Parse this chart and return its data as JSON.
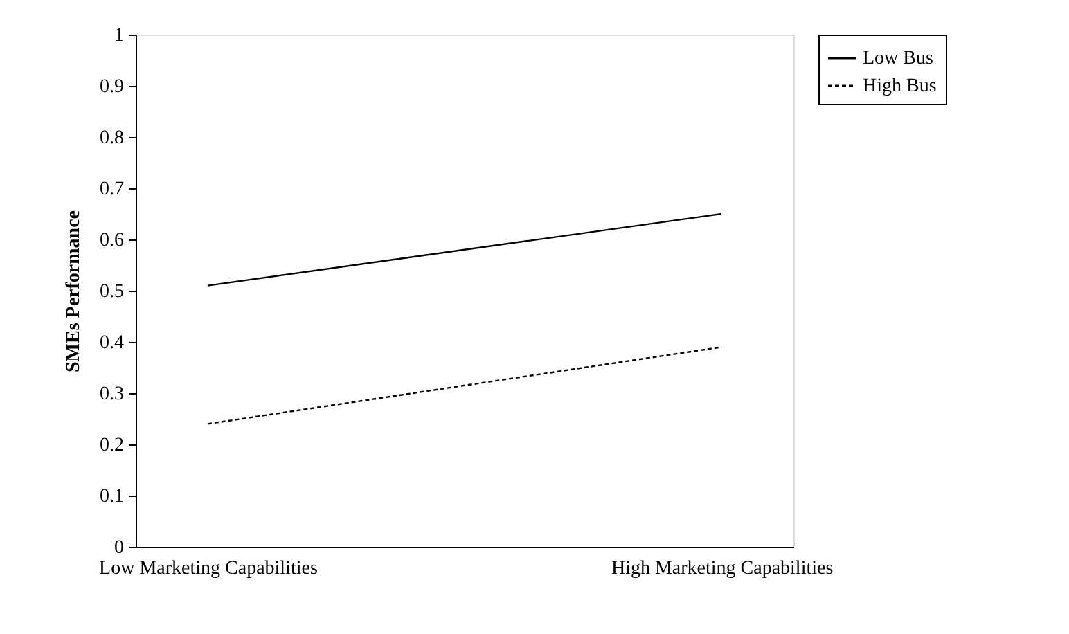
{
  "chart_data": {
    "type": "line",
    "ylabel": "SMEs Performance",
    "categories": [
      "Low Marketing Capabilities",
      "High Marketing Capabilities"
    ],
    "series": [
      {
        "name": "Low Bus",
        "color": "#000000",
        "values": [
          0.51,
          0.65
        ],
        "line_style": "solid"
      },
      {
        "name": "High Bus",
        "color": "#000000",
        "values": [
          0.24,
          0.39
        ],
        "line_style": "dashed"
      }
    ],
    "ylim": [
      0,
      1
    ],
    "yticks": [
      0,
      0.1,
      0.2,
      0.3,
      0.4,
      0.5,
      0.6,
      0.7,
      0.8,
      0.9,
      1
    ],
    "grid": false,
    "legend": "right",
    "marker": "none"
  }
}
